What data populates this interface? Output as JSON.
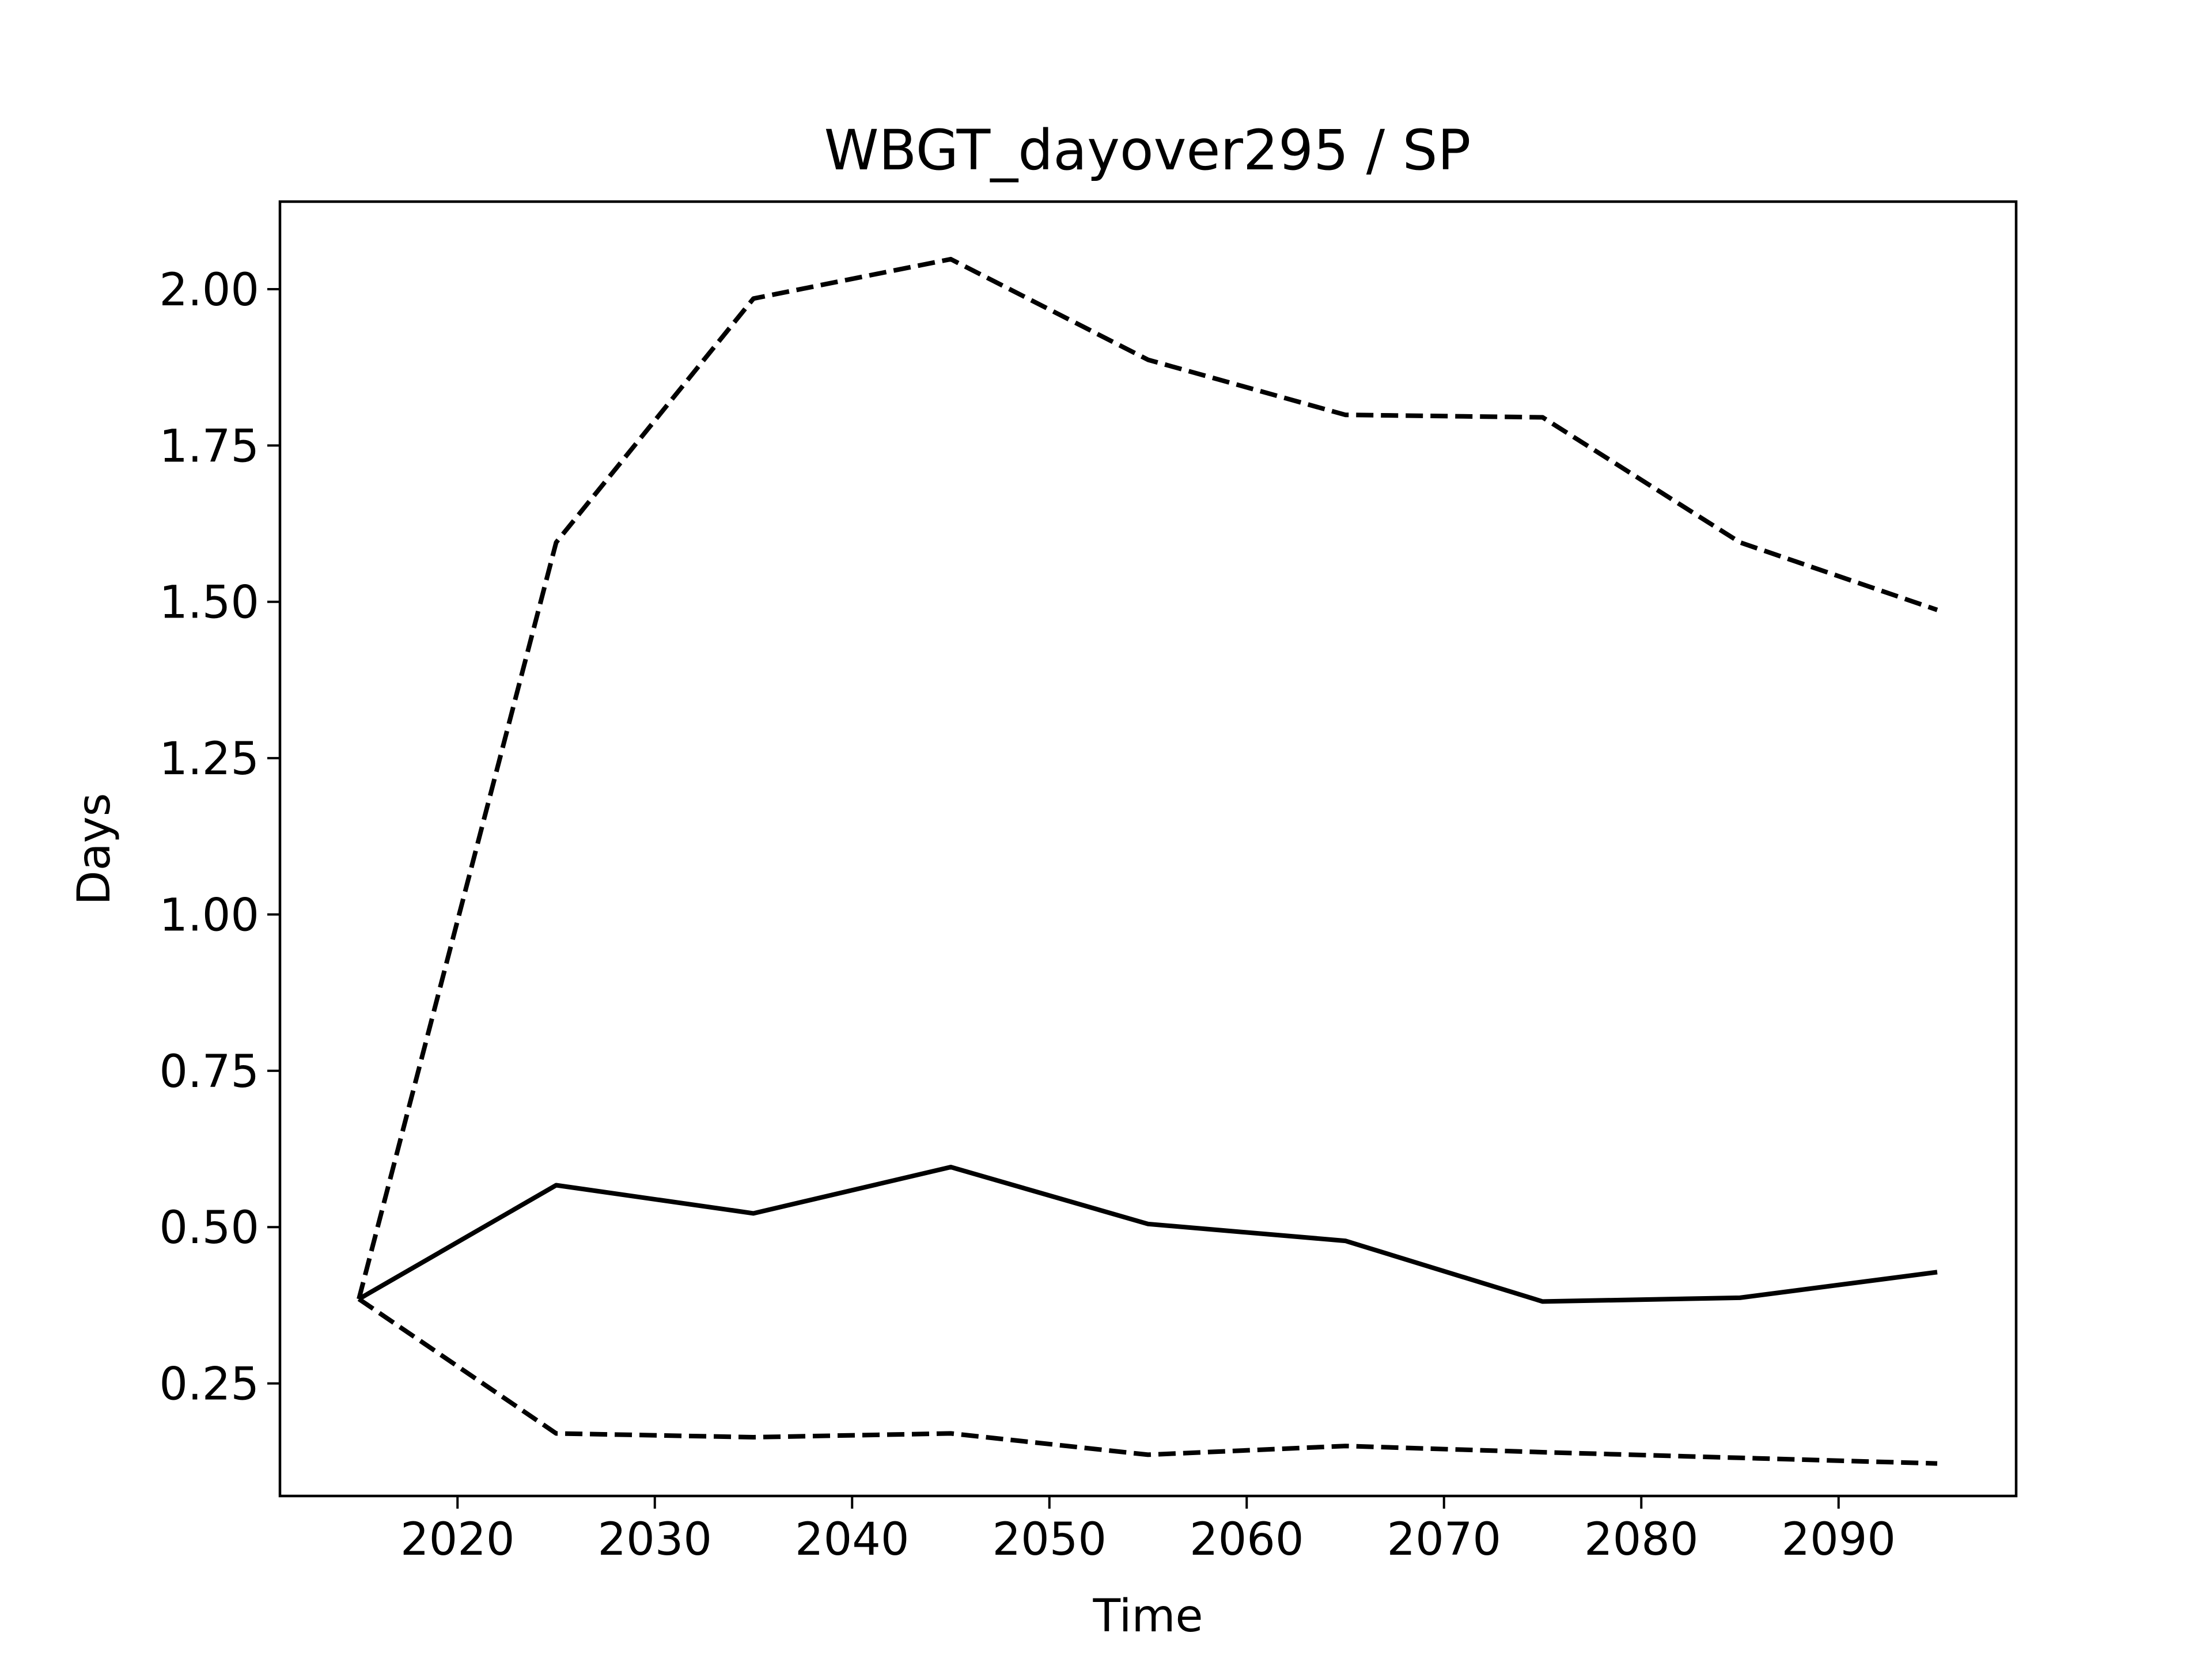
{
  "chart_data": {
    "type": "line",
    "title": "WBGT_dayover295 / SP",
    "xlabel": "Time",
    "ylabel": "Days",
    "xlim": [
      2011,
      2099
    ],
    "ylim": [
      0.07,
      2.14
    ],
    "xticks": [
      2020,
      2030,
      2040,
      2050,
      2060,
      2070,
      2080,
      2090
    ],
    "yticks": [
      0.25,
      0.5,
      0.75,
      1.0,
      1.25,
      1.5,
      1.75,
      2.0
    ],
    "grid": false,
    "x": [
      2015,
      2025,
      2035,
      2045,
      2055,
      2065,
      2075,
      2085,
      2095
    ],
    "series": [
      {
        "style": "solid",
        "values": [
          0.385,
          0.567,
          0.522,
          0.596,
          0.505,
          0.478,
          0.381,
          0.387,
          0.428
        ]
      },
      {
        "style": "dashed",
        "values": [
          0.385,
          1.595,
          1.985,
          2.048,
          1.887,
          1.799,
          1.795,
          1.595,
          1.487
        ]
      },
      {
        "style": "dashed",
        "values": [
          0.385,
          0.17,
          0.164,
          0.17,
          0.136,
          0.15,
          0.14,
          0.131,
          0.122
        ]
      }
    ]
  }
}
